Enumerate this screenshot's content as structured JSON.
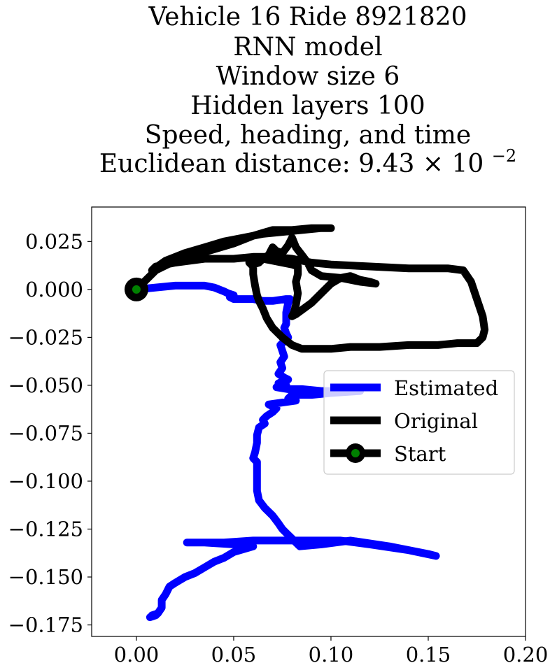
{
  "chart_data": {
    "type": "line",
    "title_lines": [
      "Vehicle 16 Ride 8921820",
      "RNN model",
      "Window size 6",
      "Hidden layers 100",
      "Speed, heading, and time"
    ],
    "title_metric": {
      "prefix": "Euclidean distance: 9.43",
      "times": "×",
      "base": "10",
      "exponent": "−2"
    },
    "xlabel": "",
    "ylabel": "",
    "xlim": [
      -0.023,
      0.2
    ],
    "ylim": [
      -0.181,
      0.043
    ],
    "xticks": [
      {
        "value": 0.0,
        "label": "0.00"
      },
      {
        "value": 0.05,
        "label": "0.05"
      },
      {
        "value": 0.1,
        "label": "0.10"
      },
      {
        "value": 0.15,
        "label": "0.15"
      },
      {
        "value": 0.2,
        "label": "0.20"
      }
    ],
    "yticks": [
      {
        "value": 0.025,
        "label": "0.025"
      },
      {
        "value": 0.0,
        "label": "0.000"
      },
      {
        "value": -0.025,
        "label": "−0.025"
      },
      {
        "value": -0.05,
        "label": "−0.050"
      },
      {
        "value": -0.075,
        "label": "−0.075"
      },
      {
        "value": -0.1,
        "label": "−0.100"
      },
      {
        "value": -0.125,
        "label": "−0.125"
      },
      {
        "value": -0.15,
        "label": "−0.150"
      },
      {
        "value": -0.175,
        "label": "−0.175"
      }
    ],
    "grid": false,
    "legend_position": "center-right",
    "series": [
      {
        "name": "Estimated",
        "color": "#0000ff",
        "points": [
          [
            0.0,
            0.0
          ],
          [
            0.01,
            0.001
          ],
          [
            0.02,
            0.002
          ],
          [
            0.035,
            0.002
          ],
          [
            0.04,
            0.001
          ],
          [
            0.045,
            -0.001
          ],
          [
            0.047,
            -0.002
          ],
          [
            0.05,
            -0.003
          ],
          [
            0.048,
            -0.004
          ],
          [
            0.05,
            -0.005
          ],
          [
            0.06,
            -0.005
          ],
          [
            0.065,
            -0.006
          ],
          [
            0.07,
            -0.006
          ],
          [
            0.077,
            -0.005
          ],
          [
            0.079,
            -0.005
          ],
          [
            0.078,
            -0.007
          ],
          [
            0.077,
            -0.012
          ],
          [
            0.077,
            -0.018
          ],
          [
            0.076,
            -0.02
          ],
          [
            0.077,
            -0.023
          ],
          [
            0.078,
            -0.025
          ],
          [
            0.076,
            -0.027
          ],
          [
            0.074,
            -0.029
          ],
          [
            0.075,
            -0.032
          ],
          [
            0.076,
            -0.035
          ],
          [
            0.074,
            -0.038
          ],
          [
            0.075,
            -0.041
          ],
          [
            0.073,
            -0.044
          ],
          [
            0.076,
            -0.046
          ],
          [
            0.078,
            -0.047
          ],
          [
            0.075,
            -0.048
          ],
          [
            0.073,
            -0.049
          ],
          [
            0.077,
            -0.05
          ],
          [
            0.074,
            -0.051
          ],
          [
            0.072,
            -0.051
          ],
          [
            0.078,
            -0.052
          ],
          [
            0.085,
            -0.052
          ],
          [
            0.095,
            -0.053
          ],
          [
            0.11,
            -0.053
          ],
          [
            0.115,
            -0.053
          ],
          [
            0.1,
            -0.054
          ],
          [
            0.09,
            -0.055
          ],
          [
            0.08,
            -0.055
          ],
          [
            0.078,
            -0.057
          ],
          [
            0.082,
            -0.058
          ],
          [
            0.075,
            -0.059
          ],
          [
            0.068,
            -0.06
          ],
          [
            0.072,
            -0.062
          ],
          [
            0.07,
            -0.064
          ],
          [
            0.067,
            -0.066
          ],
          [
            0.065,
            -0.068
          ],
          [
            0.066,
            -0.07
          ],
          [
            0.063,
            -0.072
          ],
          [
            0.062,
            -0.076
          ],
          [
            0.062,
            -0.08
          ],
          [
            0.061,
            -0.085
          ],
          [
            0.06,
            -0.088
          ],
          [
            0.062,
            -0.09
          ],
          [
            0.062,
            -0.095
          ],
          [
            0.062,
            -0.1
          ],
          [
            0.062,
            -0.105
          ],
          [
            0.063,
            -0.11
          ],
          [
            0.066,
            -0.114
          ],
          [
            0.07,
            -0.118
          ],
          [
            0.073,
            -0.122
          ],
          [
            0.075,
            -0.125
          ],
          [
            0.077,
            -0.127
          ],
          [
            0.08,
            -0.13
          ],
          [
            0.082,
            -0.132
          ],
          [
            0.084,
            -0.134
          ],
          [
            0.095,
            -0.133
          ],
          [
            0.11,
            -0.131
          ],
          [
            0.13,
            -0.134
          ],
          [
            0.15,
            -0.138
          ],
          [
            0.154,
            -0.139
          ],
          [
            0.14,
            -0.136
          ],
          [
            0.12,
            -0.133
          ],
          [
            0.105,
            -0.131
          ],
          [
            0.09,
            -0.131
          ],
          [
            0.075,
            -0.131
          ],
          [
            0.06,
            -0.131
          ],
          [
            0.045,
            -0.132
          ],
          [
            0.03,
            -0.132
          ],
          [
            0.026,
            -0.132
          ],
          [
            0.035,
            -0.132
          ],
          [
            0.05,
            -0.133
          ],
          [
            0.06,
            -0.134
          ],
          [
            0.05,
            -0.137
          ],
          [
            0.045,
            -0.14
          ],
          [
            0.04,
            -0.142
          ],
          [
            0.035,
            -0.145
          ],
          [
            0.03,
            -0.148
          ],
          [
            0.025,
            -0.15
          ],
          [
            0.02,
            -0.153
          ],
          [
            0.017,
            -0.155
          ],
          [
            0.015,
            -0.159
          ],
          [
            0.013,
            -0.162
          ],
          [
            0.013,
            -0.166
          ],
          [
            0.011,
            -0.169
          ],
          [
            0.008,
            -0.17
          ],
          [
            0.01,
            -0.17
          ],
          [
            0.007,
            -0.171
          ]
        ]
      },
      {
        "name": "Original",
        "color": "#000000",
        "points": [
          [
            0.0,
            0.0
          ],
          [
            0.005,
            0.005
          ],
          [
            0.01,
            0.01
          ],
          [
            0.02,
            0.015
          ],
          [
            0.03,
            0.018
          ],
          [
            0.04,
            0.021
          ],
          [
            0.05,
            0.024
          ],
          [
            0.06,
            0.028
          ],
          [
            0.07,
            0.031
          ],
          [
            0.08,
            0.031
          ],
          [
            0.09,
            0.032
          ],
          [
            0.1,
            0.032
          ],
          [
            0.095,
            0.032
          ],
          [
            0.085,
            0.031
          ],
          [
            0.075,
            0.03
          ],
          [
            0.065,
            0.029
          ],
          [
            0.055,
            0.027
          ],
          [
            0.045,
            0.025
          ],
          [
            0.035,
            0.022
          ],
          [
            0.025,
            0.019
          ],
          [
            0.015,
            0.015
          ],
          [
            0.008,
            0.01
          ],
          [
            0.01,
            0.012
          ],
          [
            0.02,
            0.014
          ],
          [
            0.035,
            0.016
          ],
          [
            0.05,
            0.016
          ],
          [
            0.06,
            0.017
          ],
          [
            0.07,
            0.017
          ],
          [
            0.08,
            0.016
          ],
          [
            0.09,
            0.014
          ],
          [
            0.1,
            0.013
          ],
          [
            0.12,
            0.012
          ],
          [
            0.14,
            0.011
          ],
          [
            0.15,
            0.011
          ],
          [
            0.16,
            0.011
          ],
          [
            0.168,
            0.01
          ],
          [
            0.172,
            0.004
          ],
          [
            0.175,
            -0.005
          ],
          [
            0.178,
            -0.014
          ],
          [
            0.179,
            -0.021
          ],
          [
            0.178,
            -0.025
          ],
          [
            0.175,
            -0.028
          ],
          [
            0.165,
            -0.028
          ],
          [
            0.155,
            -0.029
          ],
          [
            0.14,
            -0.029
          ],
          [
            0.125,
            -0.03
          ],
          [
            0.11,
            -0.03
          ],
          [
            0.1,
            -0.031
          ],
          [
            0.09,
            -0.031
          ],
          [
            0.085,
            -0.031
          ],
          [
            0.08,
            -0.029
          ],
          [
            0.075,
            -0.025
          ],
          [
            0.07,
            -0.02
          ],
          [
            0.067,
            -0.015
          ],
          [
            0.065,
            -0.01
          ],
          [
            0.063,
            -0.006
          ],
          [
            0.062,
            -0.003
          ],
          [
            0.061,
            0.002
          ],
          [
            0.06,
            0.008
          ],
          [
            0.06,
            0.012
          ],
          [
            0.058,
            0.014
          ],
          [
            0.06,
            0.015
          ],
          [
            0.065,
            0.016
          ],
          [
            0.07,
            0.015
          ],
          [
            0.075,
            0.014
          ],
          [
            0.08,
            0.013
          ],
          [
            0.083,
            0.012
          ],
          [
            0.083,
            0.008
          ],
          [
            0.082,
            0.004
          ],
          [
            0.083,
            -0.002
          ],
          [
            0.082,
            -0.008
          ],
          [
            0.081,
            -0.012
          ],
          [
            0.08,
            -0.014
          ],
          [
            0.082,
            -0.013
          ],
          [
            0.086,
            -0.01
          ],
          [
            0.09,
            -0.007
          ],
          [
            0.095,
            -0.002
          ],
          [
            0.1,
            0.003
          ],
          [
            0.105,
            0.006
          ],
          [
            0.11,
            0.007
          ],
          [
            0.115,
            0.005
          ],
          [
            0.12,
            0.004
          ],
          [
            0.123,
            0.003
          ],
          [
            0.115,
            0.004
          ],
          [
            0.105,
            0.006
          ],
          [
            0.095,
            0.007
          ],
          [
            0.09,
            0.01
          ],
          [
            0.088,
            0.014
          ],
          [
            0.085,
            0.018
          ],
          [
            0.082,
            0.022
          ],
          [
            0.08,
            0.027
          ],
          [
            0.078,
            0.023
          ],
          [
            0.075,
            0.019
          ],
          [
            0.072,
            0.02
          ],
          [
            0.07,
            0.022
          ],
          [
            0.068,
            0.018
          ],
          [
            0.065,
            0.016
          ],
          [
            0.063,
            0.014
          ],
          [
            0.06,
            0.013
          ]
        ]
      },
      {
        "name": "Start",
        "color": "#000000",
        "marker_face_color": "#008000",
        "points": [
          [
            0.0,
            0.0
          ]
        ]
      }
    ]
  }
}
